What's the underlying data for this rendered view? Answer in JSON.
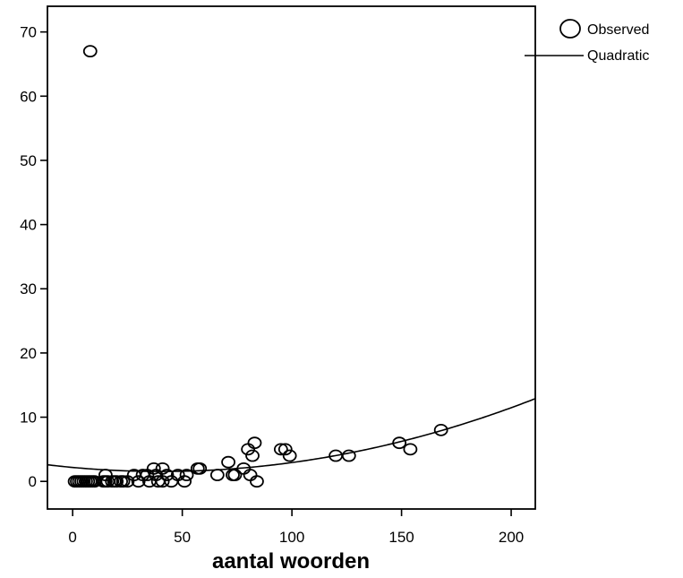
{
  "chart_data": {
    "type": "scatter",
    "xlabel": "aantal woorden",
    "ylabel": "",
    "xlim": [
      -11.5,
      211
    ],
    "ylim": [
      -4.3,
      74
    ],
    "xticks": [
      0,
      50,
      100,
      150,
      200
    ],
    "yticks": [
      0,
      10,
      20,
      30,
      40,
      50,
      60,
      70
    ],
    "grid": false,
    "legend_placement": "top-right, outside plot",
    "legend": [
      {
        "label": "Observed",
        "marker": "circle"
      },
      {
        "label": "Quadratic",
        "marker": "line"
      }
    ],
    "series": [
      {
        "name": "Observed",
        "points": [
          [
            8,
            67
          ],
          [
            1,
            0
          ],
          [
            2,
            0
          ],
          [
            3,
            0
          ],
          [
            4,
            0
          ],
          [
            5,
            0
          ],
          [
            6,
            0
          ],
          [
            7,
            0
          ],
          [
            8,
            0
          ],
          [
            9,
            0
          ],
          [
            10,
            0
          ],
          [
            14,
            0
          ],
          [
            15,
            0
          ],
          [
            15,
            1
          ],
          [
            16,
            0
          ],
          [
            18,
            0
          ],
          [
            19,
            0
          ],
          [
            20,
            0
          ],
          [
            22,
            0
          ],
          [
            23,
            0
          ],
          [
            25,
            0
          ],
          [
            28,
            1
          ],
          [
            30,
            0
          ],
          [
            32,
            1
          ],
          [
            34,
            1
          ],
          [
            35,
            0
          ],
          [
            37,
            2
          ],
          [
            38,
            1
          ],
          [
            39,
            0
          ],
          [
            41,
            2
          ],
          [
            41,
            0
          ],
          [
            43,
            1
          ],
          [
            45,
            0
          ],
          [
            48,
            1
          ],
          [
            51,
            0
          ],
          [
            52,
            1
          ],
          [
            57,
            2
          ],
          [
            58,
            2
          ],
          [
            66,
            1
          ],
          [
            71,
            3
          ],
          [
            73,
            1
          ],
          [
            74,
            1
          ],
          [
            78,
            2
          ],
          [
            80,
            5
          ],
          [
            81,
            1
          ],
          [
            82,
            4
          ],
          [
            83,
            6
          ],
          [
            84,
            0
          ],
          [
            95,
            5
          ],
          [
            97,
            5
          ],
          [
            99,
            4
          ],
          [
            120,
            4
          ],
          [
            126,
            4
          ],
          [
            149,
            6
          ],
          [
            154,
            5
          ],
          [
            168,
            8
          ]
        ]
      },
      {
        "name": "Quadratic",
        "coefficients": {
          "b0": 2.175,
          "b1": -0.0313,
          "b2": 0.000389
        },
        "x_range": [
          -11.5,
          211
        ]
      }
    ]
  }
}
